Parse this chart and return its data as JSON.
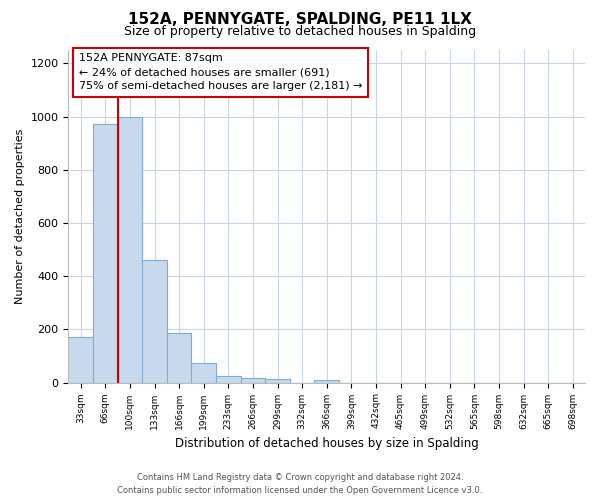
{
  "title": "152A, PENNYGATE, SPALDING, PE11 1LX",
  "subtitle": "Size of property relative to detached houses in Spalding",
  "xlabel": "Distribution of detached houses by size in Spalding",
  "ylabel": "Number of detached properties",
  "bar_labels": [
    "33sqm",
    "66sqm",
    "100sqm",
    "133sqm",
    "166sqm",
    "199sqm",
    "233sqm",
    "266sqm",
    "299sqm",
    "332sqm",
    "366sqm",
    "399sqm",
    "432sqm",
    "465sqm",
    "499sqm",
    "532sqm",
    "565sqm",
    "598sqm",
    "632sqm",
    "665sqm",
    "698sqm"
  ],
  "bar_heights": [
    170,
    970,
    1000,
    460,
    185,
    75,
    25,
    18,
    15,
    0,
    10,
    0,
    0,
    0,
    0,
    0,
    0,
    0,
    0,
    0,
    0
  ],
  "bar_color": "#c8d9ee",
  "bar_edge_color": "#7bafd4",
  "property_line_color": "#cc0000",
  "ylim": [
    0,
    1250
  ],
  "yticks": [
    0,
    200,
    400,
    600,
    800,
    1000,
    1200
  ],
  "annotation_title": "152A PENNYGATE: 87sqm",
  "annotation_line1": "← 24% of detached houses are smaller (691)",
  "annotation_line2": "75% of semi-detached houses are larger (2,181) →",
  "annotation_box_color": "#ffffff",
  "annotation_box_edge": "#cc0000",
  "footer_line1": "Contains HM Land Registry data © Crown copyright and database right 2024.",
  "footer_line2": "Contains public sector information licensed under the Open Government Licence v3.0.",
  "background_color": "#ffffff",
  "grid_color": "#c8d4e8"
}
